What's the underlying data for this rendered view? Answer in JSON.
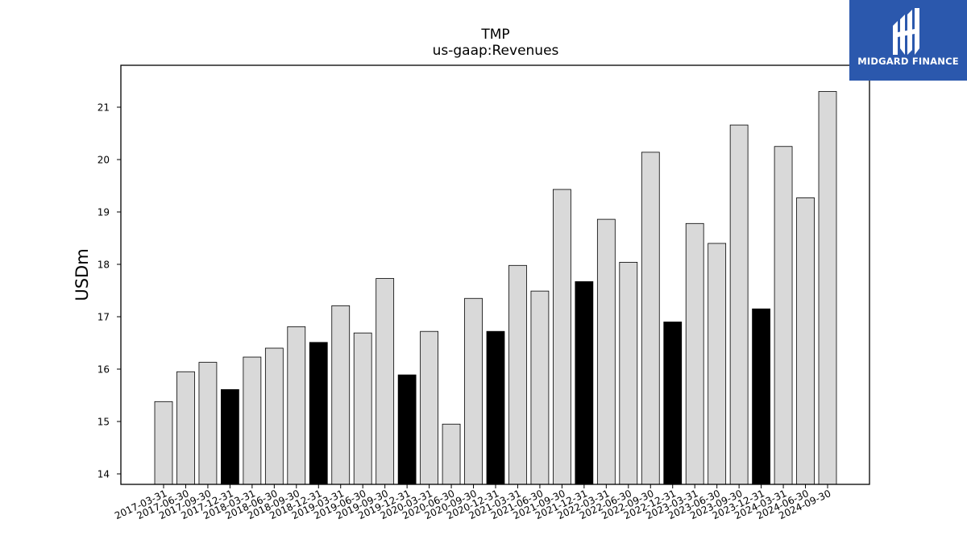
{
  "logo": {
    "text": "MIDGARD FINANCE"
  },
  "colors": {
    "normal_bar": "#d9d9d9",
    "highlight_bar": "#000000",
    "bar_edge": "#000000",
    "logo_bg": "#2b58ad"
  },
  "chart_data": {
    "type": "bar",
    "title": "TMP",
    "subtitle": "us-gaap:Revenues",
    "xlabel": "",
    "ylabel": "USDm",
    "ylim": [
      13.8,
      21.8
    ],
    "yticks": [
      14,
      15,
      16,
      17,
      18,
      19,
      20,
      21
    ],
    "grid": false,
    "categories": [
      "2017-03-31",
      "2017-06-30",
      "2017-09-30",
      "2017-12-31",
      "2018-03-31",
      "2018-06-30",
      "2018-09-30",
      "2018-12-31",
      "2019-03-31",
      "2019-06-30",
      "2019-09-30",
      "2019-12-31",
      "2020-03-31",
      "2020-06-30",
      "2020-09-30",
      "2020-12-31",
      "2021-03-31",
      "2021-06-30",
      "2021-09-30",
      "2021-12-31",
      "2022-03-31",
      "2022-06-30",
      "2022-09-30",
      "2022-12-31",
      "2023-03-31",
      "2023-06-30",
      "2023-09-30",
      "2023-12-31",
      "2024-03-31",
      "2024-06-30",
      "2024-09-30"
    ],
    "values": [
      15.38,
      15.95,
      16.13,
      15.61,
      16.23,
      16.4,
      16.81,
      16.51,
      17.21,
      16.69,
      17.73,
      15.89,
      16.72,
      14.95,
      17.35,
      16.72,
      17.98,
      17.49,
      19.43,
      17.67,
      18.86,
      18.04,
      20.14,
      16.9,
      18.78,
      18.4,
      20.66,
      17.15,
      20.25,
      19.27,
      21.3
    ],
    "highlight_categories": [
      "2017-12-31",
      "2018-12-31",
      "2019-12-31",
      "2020-12-31",
      "2021-12-31",
      "2022-12-31",
      "2023-12-31"
    ]
  }
}
